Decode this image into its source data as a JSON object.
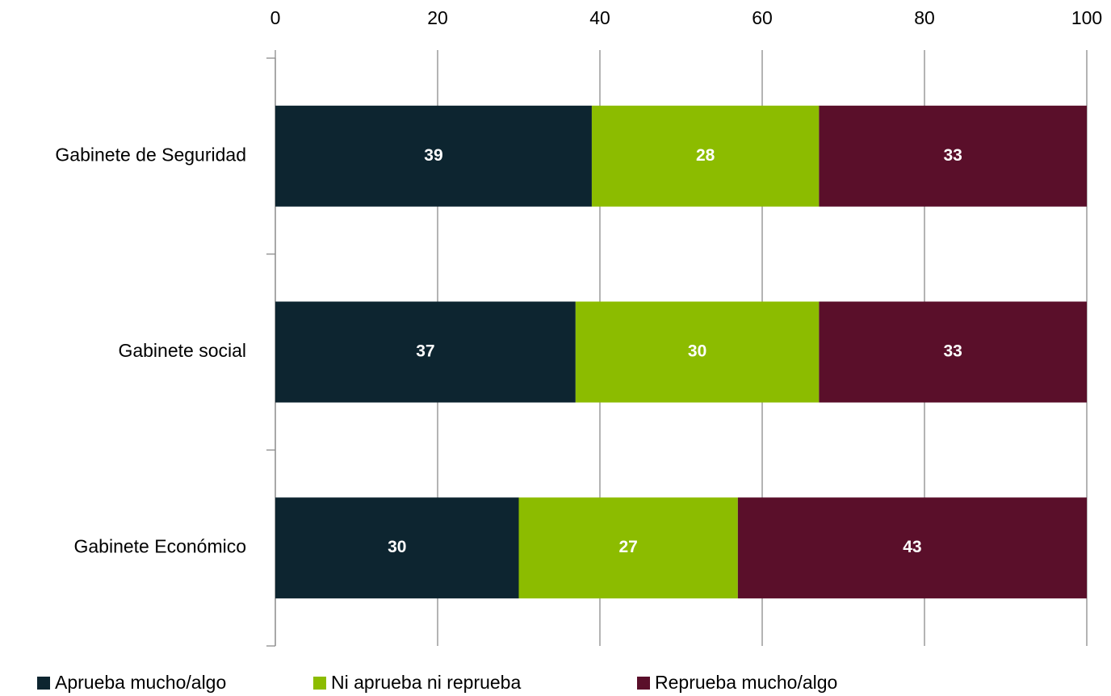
{
  "chart_data": {
    "type": "stacked-bar-horizontal",
    "categories": [
      "Gabinete de Seguridad",
      "Gabinete social",
      "Gabinete Económico"
    ],
    "series": [
      {
        "name": "Aprueba mucho/algo",
        "color": "#0d2530",
        "values": [
          39,
          37,
          30
        ]
      },
      {
        "name": "Ni aprueba ni reprueba",
        "color": "#8cbc00",
        "values": [
          28,
          30,
          27
        ]
      },
      {
        "name": "Reprueba mucho/algo",
        "color": "#5a0f2a",
        "values": [
          33,
          33,
          43
        ]
      }
    ],
    "xlim": [
      0,
      100
    ],
    "xticks": [
      0,
      20,
      40,
      60,
      80,
      100
    ],
    "grid": true,
    "legend": "bottom"
  }
}
